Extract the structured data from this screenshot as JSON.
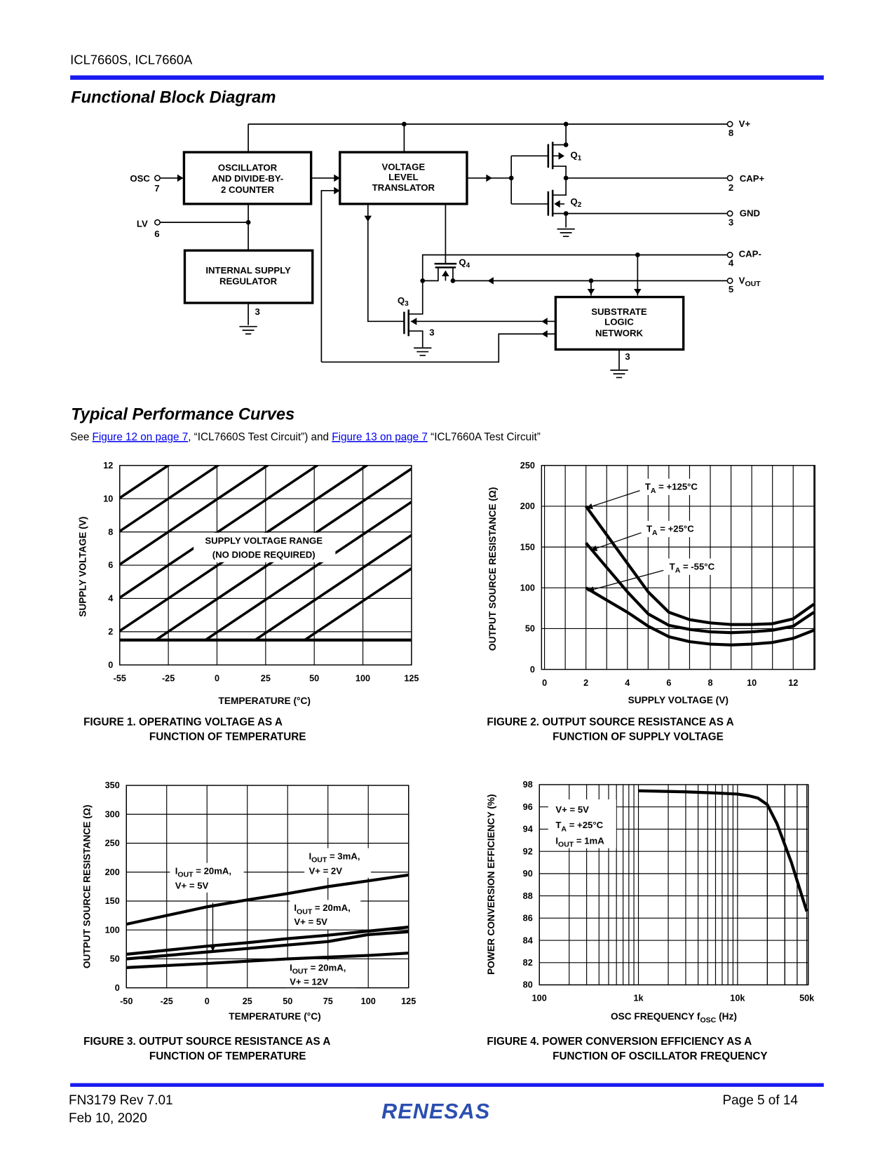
{
  "header": {
    "doc_title": "ICL7660S, ICL7660A"
  },
  "colors": {
    "rule": "#1a1af0",
    "link": "#0000ee",
    "logo": "#2b4fb0"
  },
  "block_diagram": {
    "title": "Functional Block Diagram",
    "blocks": {
      "oscillator": [
        "OSCILLATOR",
        "AND DIVIDE-BY-",
        "2 COUNTER"
      ],
      "translator": [
        "VOLTAGE",
        "LEVEL",
        "TRANSLATOR"
      ],
      "regulator": [
        "INTERNAL SUPPLY",
        "REGULATOR"
      ],
      "substrate": [
        "SUBSTRATE",
        "LOGIC",
        "NETWORK"
      ]
    },
    "pins": {
      "osc": {
        "label": "OSC",
        "num": "7"
      },
      "lv": {
        "label": "LV",
        "num": "6"
      },
      "vplus": {
        "label": "V+",
        "num": "8"
      },
      "capplus": {
        "label": "CAP+",
        "num": "2"
      },
      "gnd": {
        "label": "GND",
        "num": "3"
      },
      "capminus": {
        "label": "CAP-",
        "num": "4"
      },
      "vout": {
        "label": "V",
        "sub": "OUT",
        "num": "5"
      }
    },
    "transistors": {
      "q1": {
        "main": "Q",
        "sub": "1"
      },
      "q2": {
        "main": "Q",
        "sub": "2"
      },
      "q3": {
        "main": "Q",
        "sub": "3"
      },
      "q4": {
        "main": "Q",
        "sub": "4"
      }
    },
    "ground_pin": "3"
  },
  "curves_section": {
    "title": "Typical Performance Curves",
    "intro": {
      "prefix": "See ",
      "link1": "Figure 12 on page 7",
      "mid": ", “ICL7660S Test Circuit”) and ",
      "link2": "Figure 13 on page 7",
      "suffix": " “ICL7660A Test Circuit”"
    }
  },
  "chart_data": [
    {
      "type": "line",
      "caption": [
        "FIGURE 1.  OPERATING VOLTAGE AS A",
        "FUNCTION OF TEMPERATURE"
      ],
      "xlabel": "TEMPERATURE (°C)",
      "ylabel": "SUPPLY VOLTAGE (V)",
      "x_ticks": [
        "-55",
        "-25",
        "0",
        "25",
        "50",
        "100",
        "125"
      ],
      "y_ticks": [
        "0",
        "2",
        "4",
        "6",
        "8",
        "10",
        "12"
      ],
      "xlim": [
        -55,
        125
      ],
      "ylim": [
        0,
        12
      ],
      "grid": true,
      "series": [
        {
          "name": "minimum supply voltage",
          "x": [
            -55,
            125
          ],
          "y": [
            1.5,
            1.5
          ]
        }
      ],
      "annotations": [
        [
          "SUPPLY VOLTAGE RANGE",
          "(NO DIODE REQUIRED)"
        ]
      ]
    },
    {
      "type": "line",
      "caption": [
        "FIGURE 2.  OUTPUT SOURCE RESISTANCE AS A",
        "FUNCTION OF SUPPLY VOLTAGE"
      ],
      "xlabel": "SUPPLY VOLTAGE (V)",
      "ylabel": "OUTPUT SOURCE RESISTANCE (Ω)",
      "x_ticks": [
        "0",
        "2",
        "4",
        "6",
        "8",
        "10",
        "12"
      ],
      "y_ticks": [
        "0",
        "50",
        "100",
        "150",
        "200",
        "250"
      ],
      "xlim": [
        0,
        13
      ],
      "ylim": [
        0,
        250
      ],
      "grid": true,
      "series": [
        {
          "name": "TA = +125°C",
          "x": [
            2,
            3,
            4,
            5,
            6,
            7,
            8,
            9,
            10,
            11,
            12,
            13
          ],
          "y": [
            200,
            165,
            130,
            95,
            70,
            61,
            57,
            55,
            55,
            56,
            62,
            80
          ]
        },
        {
          "name": "TA = +25°C",
          "x": [
            2,
            3,
            4,
            5,
            6,
            7,
            8,
            9,
            10,
            11,
            12,
            13
          ],
          "y": [
            155,
            125,
            95,
            68,
            54,
            49,
            46,
            45,
            46,
            48,
            53,
            70
          ]
        },
        {
          "name": "TA = -55°C",
          "x": [
            2,
            3,
            4,
            5,
            6,
            7,
            8,
            9,
            10,
            11,
            12,
            13
          ],
          "y": [
            100,
            85,
            70,
            53,
            40,
            34,
            31,
            30,
            31,
            33,
            38,
            48
          ]
        }
      ],
      "annotations": [
        [
          {
            "pre": "T",
            "sub": "A",
            "post": " = +125°C"
          }
        ],
        [
          {
            "pre": "T",
            "sub": "A",
            "post": " = +25°C"
          }
        ],
        [
          {
            "pre": "T",
            "sub": "A",
            "post": " = -55°C"
          }
        ]
      ]
    },
    {
      "type": "line",
      "caption": [
        "FIGURE 3.  OUTPUT SOURCE RESISTANCE AS A",
        "FUNCTION OF TEMPERATURE"
      ],
      "xlabel": "TEMPERATURE (°C)",
      "ylabel": "OUTPUT SOURCE RESISTANCE (Ω)",
      "x_ticks": [
        "-50",
        "-25",
        "0",
        "25",
        "50",
        "75",
        "100",
        "125"
      ],
      "y_ticks": [
        "0",
        "50",
        "100",
        "150",
        "200",
        "250",
        "300",
        "350"
      ],
      "xlim": [
        -50,
        125
      ],
      "ylim": [
        0,
        350
      ],
      "grid": true,
      "series": [
        {
          "name": "IOUT = 3mA, V+ = 2V",
          "x": [
            -50,
            0,
            25,
            50,
            75,
            100,
            125
          ],
          "y": [
            110,
            140,
            152,
            163,
            175,
            185,
            195
          ]
        },
        {
          "name": "IOUT = 20mA, V+ = 5V (a)",
          "x": [
            -50,
            0,
            25,
            50,
            75,
            100,
            125
          ],
          "y": [
            58,
            72,
            78,
            85,
            91,
            98,
            105
          ]
        },
        {
          "name": "IOUT = 20mA, V+ = 5V (b)",
          "x": [
            -50,
            0,
            25,
            50,
            75,
            100,
            125
          ],
          "y": [
            50,
            62,
            68,
            74,
            80,
            92,
            97
          ]
        },
        {
          "name": "IOUT = 20mA, V+ = 12V",
          "x": [
            -50,
            0,
            25,
            50,
            75,
            100,
            125
          ],
          "y": [
            35,
            42,
            46,
            50,
            53,
            56,
            60
          ]
        }
      ],
      "annotations": [
        [
          {
            "pre": "I",
            "sub": "OUT",
            "post": " = 20mA,"
          },
          "V+ = 5V"
        ],
        [
          {
            "pre": "I",
            "sub": "OUT",
            "post": " = 3mA,"
          },
          "V+ = 2V"
        ],
        [
          {
            "pre": "I",
            "sub": "OUT",
            "post": " = 20mA,"
          },
          "V+ = 5V"
        ],
        [
          {
            "pre": "I",
            "sub": "OUT",
            "post": " = 20mA,"
          },
          "V+ = 12V"
        ]
      ]
    },
    {
      "type": "line",
      "caption": [
        "FIGURE 4.  POWER CONVERSION EFFICIENCY AS A",
        "FUNCTION OF OSCILLATOR FREQUENCY"
      ],
      "xlabel": {
        "pre": "OSC FREQUENCY f",
        "sub": "OSC",
        "post": " (Hz)"
      },
      "ylabel": "POWER CONVERSION EFFICIENCY (%)",
      "x_ticks": [
        "100",
        "1k",
        "10k",
        "50k"
      ],
      "x_tick_values": [
        100,
        1000,
        10000,
        50000
      ],
      "y_ticks": [
        "80",
        "82",
        "84",
        "86",
        "88",
        "90",
        "92",
        "94",
        "96",
        "98"
      ],
      "xlim": [
        100,
        50000
      ],
      "xscale": "log",
      "ylim": [
        80,
        98
      ],
      "grid": true,
      "series": [
        {
          "name": "efficiency",
          "x": [
            1000,
            3000,
            6000,
            10000,
            13000,
            16000,
            20000,
            25000,
            35000,
            50000
          ],
          "y": [
            97.45,
            97.35,
            97.25,
            97.15,
            97.0,
            96.8,
            96.2,
            94.5,
            91,
            86.6
          ]
        }
      ],
      "annotations": [
        [
          "V+ = 5V",
          {
            "pre": "T",
            "sub": "A",
            "post": " = +25°C"
          },
          {
            "pre": "I",
            "sub": "OUT",
            "post": " = 1mA"
          }
        ]
      ]
    }
  ],
  "footer": {
    "doc_id": "FN3179  Rev 7.01",
    "date": "Feb 10, 2020",
    "page": "Page 5 of 14",
    "logo": "RENESAS"
  }
}
